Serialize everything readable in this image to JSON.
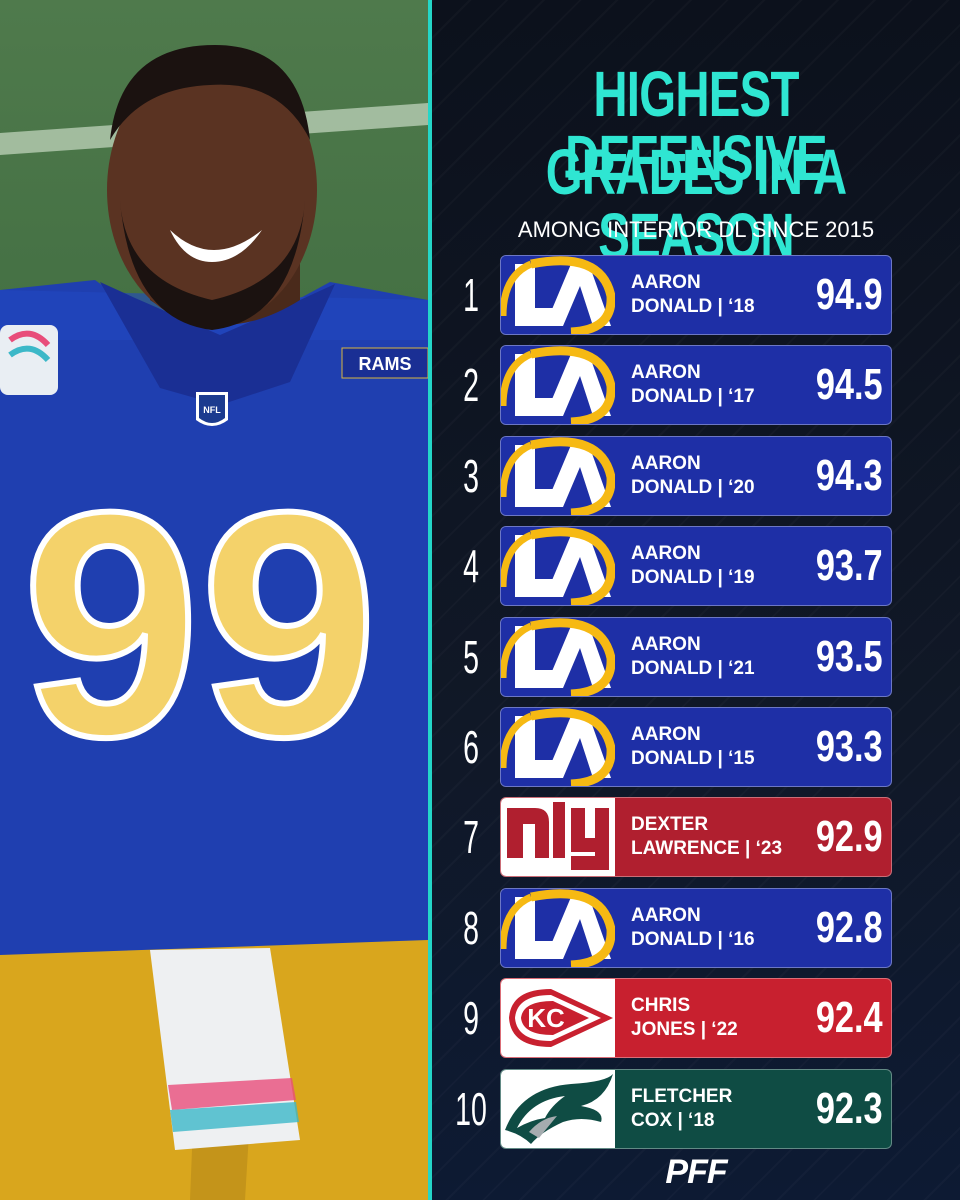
{
  "header": {
    "title_line1": "HIGHEST DEFENSIVE",
    "title_line2": "GRADES IN A SEASON",
    "subtitle": "AMONG INTERIOR DL SINCE 2015"
  },
  "photo": {
    "jersey_number": "99",
    "jersey_wordmark": "RAMS",
    "shield_text": "NFL"
  },
  "rows": [
    {
      "rank": "1",
      "line1": "AARON",
      "line2": "DONALD | ‘18",
      "grade": "94.9",
      "team": "rams",
      "color": "#1e2fa6"
    },
    {
      "rank": "2",
      "line1": "AARON",
      "line2": "DONALD | ‘17",
      "grade": "94.5",
      "team": "rams",
      "color": "#1e2fa6"
    },
    {
      "rank": "3",
      "line1": "AARON",
      "line2": "DONALD | ‘20",
      "grade": "94.3",
      "team": "rams",
      "color": "#1e2fa6"
    },
    {
      "rank": "4",
      "line1": "AARON",
      "line2": "DONALD | ‘19",
      "grade": "93.7",
      "team": "rams",
      "color": "#1e2fa6"
    },
    {
      "rank": "5",
      "line1": "AARON",
      "line2": "DONALD | ‘21",
      "grade": "93.5",
      "team": "rams",
      "color": "#1e2fa6"
    },
    {
      "rank": "6",
      "line1": "AARON",
      "line2": "DONALD | ‘15",
      "grade": "93.3",
      "team": "rams",
      "color": "#1e2fa6"
    },
    {
      "rank": "7",
      "line1": "DEXTER",
      "line2": "LAWRENCE | ‘23",
      "grade": "92.9",
      "team": "giants",
      "color": "#b01f2f"
    },
    {
      "rank": "8",
      "line1": "AARON",
      "line2": "DONALD | ‘16",
      "grade": "92.8",
      "team": "rams",
      "color": "#1e2fa6"
    },
    {
      "rank": "9",
      "line1": "CHRIS",
      "line2": "JONES | ‘22",
      "grade": "92.4",
      "team": "chiefs",
      "color": "#c8202f"
    },
    {
      "rank": "10",
      "line1": "FLETCHER",
      "line2": "COX | ‘18",
      "grade": "92.3",
      "team": "eagles",
      "color": "#0f4c44"
    }
  ],
  "footer": {
    "brand": "PFF"
  },
  "colors": {
    "accent": "#2fe6d2",
    "rams_blue": "#1e2fa6",
    "rams_gold": "#f6b913"
  }
}
